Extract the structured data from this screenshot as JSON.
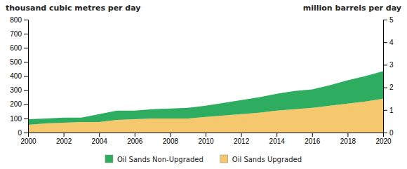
{
  "chart_data": {
    "type": "area",
    "stacked": true,
    "x": [
      2000,
      2001,
      2002,
      2003,
      2004,
      2005,
      2006,
      2007,
      2008,
      2009,
      2010,
      2011,
      2012,
      2013,
      2014,
      2015,
      2016,
      2017,
      2018,
      2019,
      2020
    ],
    "series": [
      {
        "name": "Oil Sands Upgraded",
        "color": "#F5C86E",
        "values": [
          55,
          65,
          70,
          75,
          75,
          90,
          95,
          100,
          100,
          100,
          110,
          120,
          130,
          140,
          155,
          165,
          175,
          190,
          205,
          220,
          240
        ]
      },
      {
        "name": "Oil Sands Non-Upgraded",
        "color": "#2EAD60",
        "values": [
          40,
          35,
          35,
          30,
          55,
          65,
          60,
          65,
          70,
          75,
          80,
          90,
          100,
          110,
          120,
          130,
          130,
          145,
          165,
          180,
          195
        ]
      }
    ],
    "xlim": [
      2000,
      2020
    ],
    "xticks": [
      2000,
      2002,
      2004,
      2006,
      2008,
      2010,
      2012,
      2014,
      2016,
      2018,
      2020
    ],
    "ylim": [
      0,
      800
    ],
    "yticks": [
      0,
      100,
      200,
      300,
      400,
      500,
      600,
      700,
      800
    ],
    "y2lim": [
      0,
      5
    ],
    "y2ticks": [
      0,
      1,
      2,
      3,
      4,
      5
    ],
    "y_label": "thousand cubic metres per day",
    "y2_label": "million barrels per day",
    "grid": false,
    "legend": "bottom"
  }
}
